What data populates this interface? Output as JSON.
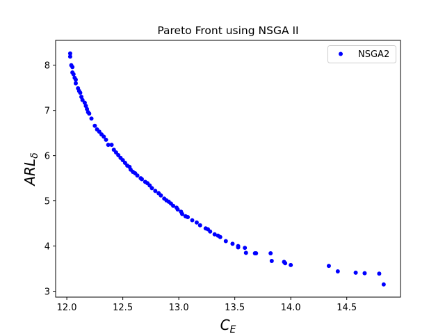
{
  "chart_data": {
    "type": "scatter",
    "title": "Pareto Front using NSGA II",
    "xlabel": {
      "main": "C",
      "sub": "E"
    },
    "ylabel": {
      "main": "ARL",
      "sub": "δ"
    },
    "xlim": [
      11.9,
      14.98
    ],
    "ylim": [
      2.87,
      8.55
    ],
    "xticks": [
      12.0,
      12.5,
      13.0,
      13.5,
      14.0,
      14.5
    ],
    "xtick_labels": [
      "12.0",
      "12.5",
      "13.0",
      "13.5",
      "14.0",
      "14.5"
    ],
    "yticks": [
      3,
      4,
      5,
      6,
      7,
      8
    ],
    "ytick_labels": [
      "3",
      "4",
      "5",
      "6",
      "7",
      "8"
    ],
    "grid": false,
    "legend_position": "top-right",
    "marker_color": "#0000ff",
    "series": [
      {
        "name": "NSGA2",
        "points": [
          [
            12.03,
            8.26
          ],
          [
            12.03,
            8.19
          ],
          [
            12.04,
            8.0
          ],
          [
            12.05,
            7.96
          ],
          [
            12.05,
            7.84
          ],
          [
            12.06,
            7.8
          ],
          [
            12.07,
            7.72
          ],
          [
            12.08,
            7.68
          ],
          [
            12.08,
            7.6
          ],
          [
            12.1,
            7.49
          ],
          [
            12.11,
            7.43
          ],
          [
            12.12,
            7.39
          ],
          [
            12.13,
            7.3
          ],
          [
            12.14,
            7.23
          ],
          [
            12.16,
            7.17
          ],
          [
            12.17,
            7.1
          ],
          [
            12.18,
            7.03
          ],
          [
            12.19,
            6.96
          ],
          [
            12.2,
            6.93
          ],
          [
            12.22,
            6.82
          ],
          [
            12.25,
            6.66
          ],
          [
            12.27,
            6.58
          ],
          [
            12.29,
            6.53
          ],
          [
            12.31,
            6.47
          ],
          [
            12.33,
            6.42
          ],
          [
            12.35,
            6.35
          ],
          [
            12.37,
            6.24
          ],
          [
            12.4,
            6.24
          ],
          [
            12.42,
            6.13
          ],
          [
            12.44,
            6.07
          ],
          [
            12.46,
            6.01
          ],
          [
            12.48,
            5.95
          ],
          [
            12.5,
            5.9
          ],
          [
            12.52,
            5.84
          ],
          [
            12.54,
            5.78
          ],
          [
            12.56,
            5.75
          ],
          [
            12.57,
            5.69
          ],
          [
            12.59,
            5.64
          ],
          [
            12.61,
            5.61
          ],
          [
            12.63,
            5.56
          ],
          [
            12.66,
            5.5
          ],
          [
            12.67,
            5.48
          ],
          [
            12.7,
            5.42
          ],
          [
            12.72,
            5.39
          ],
          [
            12.74,
            5.34
          ],
          [
            12.76,
            5.28
          ],
          [
            12.79,
            5.22
          ],
          [
            12.82,
            5.17
          ],
          [
            12.84,
            5.12
          ],
          [
            12.87,
            5.05
          ],
          [
            12.89,
            5.01
          ],
          [
            12.91,
            4.98
          ],
          [
            12.93,
            4.94
          ],
          [
            12.95,
            4.89
          ],
          [
            12.98,
            4.85
          ],
          [
            12.99,
            4.81
          ],
          [
            13.02,
            4.76
          ],
          [
            13.03,
            4.71
          ],
          [
            13.06,
            4.66
          ],
          [
            13.08,
            4.64
          ],
          [
            13.12,
            4.57
          ],
          [
            13.16,
            4.52
          ],
          [
            13.19,
            4.46
          ],
          [
            13.24,
            4.39
          ],
          [
            13.26,
            4.37
          ],
          [
            13.28,
            4.32
          ],
          [
            13.32,
            4.26
          ],
          [
            13.35,
            4.23
          ],
          [
            13.37,
            4.2
          ],
          [
            13.42,
            4.11
          ],
          [
            13.48,
            4.05
          ],
          [
            13.53,
            4.0
          ],
          [
            13.53,
            3.97
          ],
          [
            13.59,
            3.96
          ],
          [
            13.6,
            3.85
          ],
          [
            13.68,
            3.84
          ],
          [
            13.69,
            3.84
          ],
          [
            13.82,
            3.84
          ],
          [
            13.83,
            3.67
          ],
          [
            13.94,
            3.65
          ],
          [
            13.95,
            3.62
          ],
          [
            14.0,
            3.58
          ],
          [
            14.34,
            3.56
          ],
          [
            14.42,
            3.44
          ],
          [
            14.58,
            3.41
          ],
          [
            14.66,
            3.4
          ],
          [
            14.79,
            3.39
          ],
          [
            14.83,
            3.15
          ]
        ]
      }
    ]
  }
}
